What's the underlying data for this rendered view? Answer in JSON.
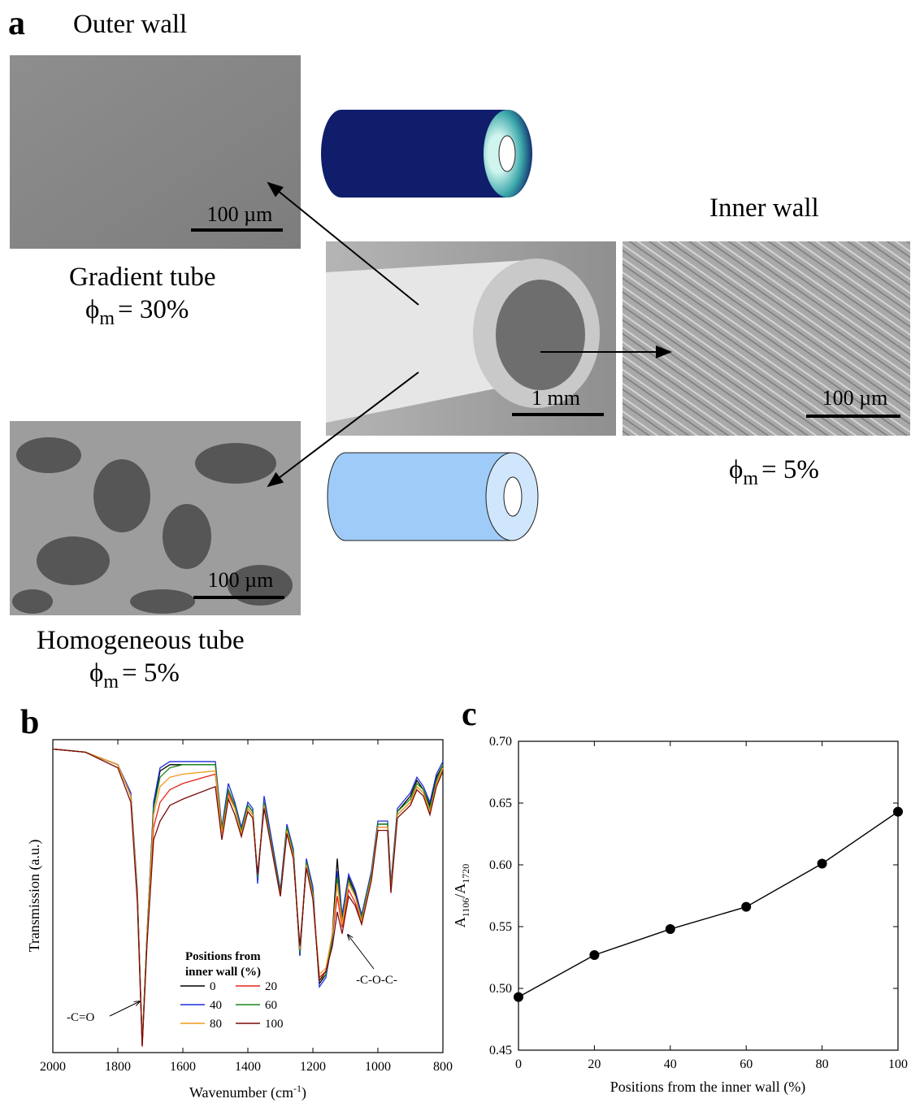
{
  "panel_a": {
    "label": "a",
    "outer_wall": "Outer wall",
    "inner_wall": "Inner wall",
    "gradient": {
      "name": "Gradient tube",
      "phi": "ϕ",
      "sub": "m",
      "value": "= 30%"
    },
    "homogeneous": {
      "name": "Homogeneous tube",
      "phi": "ϕ",
      "sub": "m",
      "value": "= 5%"
    },
    "inner": {
      "phi": "ϕ",
      "sub": "m",
      "value": "= 5%"
    },
    "scale_bars": [
      "100 µm",
      "1 mm",
      "100 µm",
      "100 µm"
    ]
  },
  "chart_data": [
    {
      "type": "line",
      "panel_label": "b",
      "xlabel": {
        "text": "Wavenumber (cm",
        "sup": "-1",
        "close": ")"
      },
      "ylabel": "Transmission (a.u.)",
      "xlim": [
        2000,
        800
      ],
      "ylim": [
        0,
        100
      ],
      "xticks": [
        2000,
        1800,
        1600,
        1400,
        1200,
        1000,
        800
      ],
      "legend_title": [
        "Positions from",
        "inner wall (%)"
      ],
      "annotations": [
        "-C=O",
        "-C-O-C-"
      ],
      "x": [
        2000,
        1900,
        1800,
        1760,
        1740,
        1725,
        1710,
        1690,
        1670,
        1640,
        1600,
        1500,
        1480,
        1460,
        1440,
        1420,
        1400,
        1385,
        1370,
        1350,
        1300,
        1280,
        1260,
        1240,
        1220,
        1200,
        1180,
        1160,
        1140,
        1125,
        1110,
        1090,
        1070,
        1050,
        1020,
        1000,
        970,
        960,
        940,
        900,
        880,
        860,
        840,
        820,
        800
      ],
      "series": [
        {
          "name": "0",
          "color": "#000000",
          "values": [
            97,
            96,
            92,
            82,
            51,
            3,
            38,
            79,
            90,
            92,
            92,
            92,
            71,
            84,
            79,
            71,
            79,
            77,
            56,
            80,
            51,
            72,
            64,
            31,
            61,
            51,
            22,
            25,
            38,
            62,
            43,
            56,
            51,
            43,
            57,
            73,
            73,
            53,
            77,
            82,
            87,
            84,
            79,
            88,
            92
          ]
        },
        {
          "name": "20",
          "color": "#e8221c",
          "values": [
            97,
            96,
            92,
            82,
            50,
            2,
            37,
            72,
            80,
            84,
            86,
            89,
            70,
            83,
            78,
            70,
            78,
            76,
            56,
            79,
            50,
            71,
            63,
            32,
            60,
            50,
            24,
            26,
            37,
            50,
            40,
            52,
            48,
            42,
            56,
            72,
            72,
            52,
            76,
            80,
            85,
            83,
            77,
            86,
            91
          ]
        },
        {
          "name": "40",
          "color": "#1f2fd8",
          "values": [
            97,
            96,
            92,
            83,
            52,
            3,
            38,
            80,
            91,
            93,
            93,
            93,
            72,
            86,
            80,
            72,
            80,
            78,
            54,
            82,
            52,
            73,
            65,
            31,
            62,
            53,
            21,
            24,
            36,
            58,
            44,
            57,
            52,
            44,
            58,
            74,
            74,
            54,
            78,
            83,
            88,
            85,
            80,
            89,
            93
          ]
        },
        {
          "name": "60",
          "color": "#1a8a1a",
          "values": [
            97,
            96,
            92,
            82,
            51,
            3,
            38,
            78,
            88,
            91,
            92,
            92,
            71,
            84,
            79,
            71,
            79,
            77,
            56,
            80,
            51,
            72,
            64,
            32,
            61,
            51,
            23,
            25,
            37,
            56,
            42,
            55,
            50,
            43,
            57,
            73,
            73,
            53,
            77,
            81,
            86,
            84,
            78,
            87,
            92
          ]
        },
        {
          "name": "80",
          "color": "#f39a1e",
          "values": [
            97,
            96,
            92,
            82,
            50,
            3,
            37,
            76,
            85,
            88,
            89,
            90,
            70,
            82,
            78,
            70,
            78,
            76,
            57,
            79,
            50,
            71,
            63,
            33,
            60,
            50,
            25,
            27,
            38,
            54,
            41,
            54,
            50,
            42,
            56,
            72,
            72,
            52,
            76,
            80,
            85,
            83,
            77,
            86,
            91
          ]
        },
        {
          "name": "100",
          "color": "#7a0a0a",
          "values": [
            97,
            96,
            91,
            80,
            48,
            2,
            35,
            68,
            74,
            79,
            81,
            85,
            68,
            81,
            76,
            69,
            77,
            75,
            57,
            78,
            50,
            70,
            62,
            34,
            59,
            49,
            23,
            26,
            34,
            45,
            38,
            50,
            47,
            41,
            55,
            71,
            71,
            51,
            75,
            79,
            84,
            82,
            76,
            85,
            90
          ]
        }
      ]
    },
    {
      "type": "line",
      "panel_label": "c",
      "markers": true,
      "color": "#000000",
      "xlabel": "Positions from the inner wall (%)",
      "ylabel": {
        "a": "A",
        "sub1": "1106",
        "slash": "/A",
        "sub2": "1720"
      },
      "xlim": [
        0,
        100
      ],
      "ylim": [
        0.45,
        0.7
      ],
      "xticks": [
        0,
        20,
        40,
        60,
        80,
        100
      ],
      "yticks": [
        0.45,
        {
          "value": 0.5,
          "label": "0.50"
        },
        0.55,
        {
          "value": 0.6,
          "label": "0.60"
        },
        0.65,
        {
          "value": 0.7,
          "label": "0.70"
        }
      ],
      "x": [
        0,
        20,
        40,
        60,
        80,
        100
      ],
      "values": [
        0.493,
        0.527,
        0.548,
        0.566,
        0.601,
        0.643
      ]
    }
  ]
}
